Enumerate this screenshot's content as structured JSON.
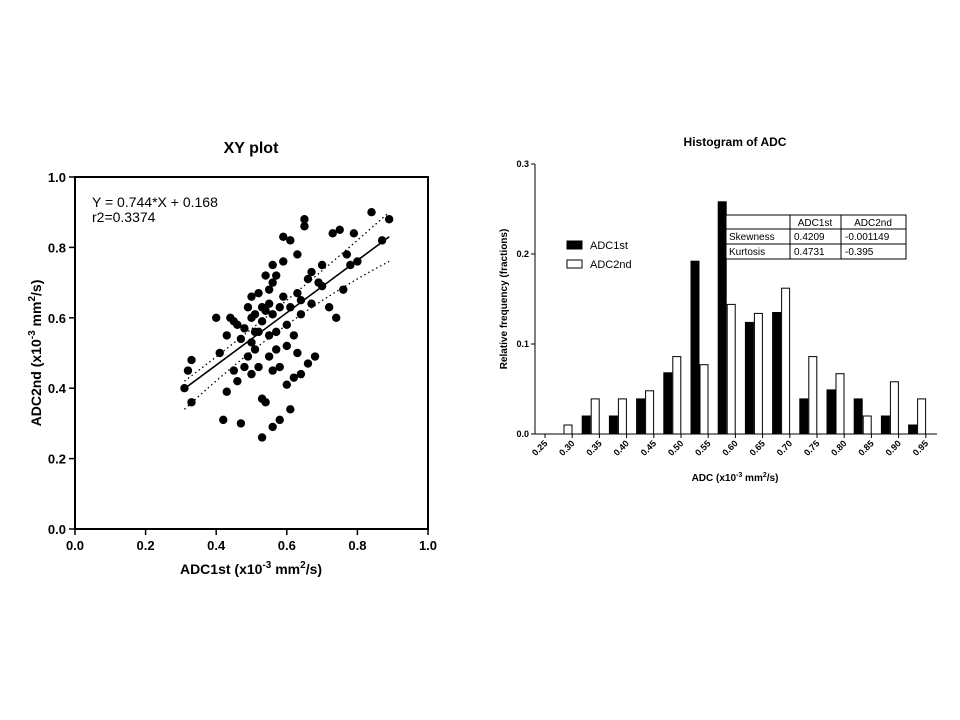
{
  "chart_data": [
    {
      "type": "scatter",
      "title": "XY plot",
      "xlabel": {
        "prefix": "ADC1st (x10",
        "sup1": "-3",
        "mid": " mm",
        "sup2": "2",
        "suffix": "/s)"
      },
      "ylabel": {
        "prefix": "ADC2nd (x10",
        "sup1": "-3",
        "mid": " mm",
        "sup2": "2",
        "suffix": "/s)"
      },
      "xlim": [
        0,
        1.0
      ],
      "ylim": [
        0,
        1.0
      ],
      "xticks": [
        "0.0",
        "0.2",
        "0.4",
        "0.6",
        "0.8",
        "1.0"
      ],
      "yticks": [
        "0.0",
        "0.2",
        "0.4",
        "0.6",
        "0.8",
        "1.0"
      ],
      "annotations": [
        "Y = 0.744*X + 0.168",
        "r2=0.3374"
      ],
      "regression": {
        "slope": 0.744,
        "intercept": 0.168,
        "x_range": [
          0.31,
          0.89
        ]
      },
      "confidence_band": {
        "lower": [
          [
            0.31,
            0.34
          ],
          [
            0.6,
            0.61
          ],
          [
            0.89,
            0.76
          ]
        ],
        "upper": [
          [
            0.31,
            0.42
          ],
          [
            0.6,
            0.64
          ],
          [
            0.89,
            0.9
          ]
        ]
      },
      "points": [
        [
          0.31,
          0.4
        ],
        [
          0.32,
          0.45
        ],
        [
          0.33,
          0.48
        ],
        [
          0.33,
          0.36
        ],
        [
          0.4,
          0.6
        ],
        [
          0.41,
          0.5
        ],
        [
          0.42,
          0.31
        ],
        [
          0.43,
          0.39
        ],
        [
          0.43,
          0.55
        ],
        [
          0.44,
          0.6
        ],
        [
          0.45,
          0.59
        ],
        [
          0.45,
          0.45
        ],
        [
          0.46,
          0.58
        ],
        [
          0.46,
          0.42
        ],
        [
          0.47,
          0.3
        ],
        [
          0.47,
          0.54
        ],
        [
          0.48,
          0.57
        ],
        [
          0.48,
          0.46
        ],
        [
          0.49,
          0.63
        ],
        [
          0.49,
          0.49
        ],
        [
          0.5,
          0.6
        ],
        [
          0.5,
          0.66
        ],
        [
          0.5,
          0.53
        ],
        [
          0.5,
          0.44
        ],
        [
          0.51,
          0.61
        ],
        [
          0.51,
          0.56
        ],
        [
          0.51,
          0.51
        ],
        [
          0.52,
          0.67
        ],
        [
          0.52,
          0.56
        ],
        [
          0.52,
          0.46
        ],
        [
          0.53,
          0.63
        ],
        [
          0.53,
          0.59
        ],
        [
          0.53,
          0.26
        ],
        [
          0.53,
          0.37
        ],
        [
          0.54,
          0.72
        ],
        [
          0.54,
          0.62
        ],
        [
          0.54,
          0.36
        ],
        [
          0.55,
          0.68
        ],
        [
          0.55,
          0.64
        ],
        [
          0.55,
          0.55
        ],
        [
          0.55,
          0.49
        ],
        [
          0.56,
          0.75
        ],
        [
          0.56,
          0.7
        ],
        [
          0.56,
          0.61
        ],
        [
          0.56,
          0.45
        ],
        [
          0.56,
          0.29
        ],
        [
          0.57,
          0.72
        ],
        [
          0.57,
          0.56
        ],
        [
          0.57,
          0.51
        ],
        [
          0.58,
          0.63
        ],
        [
          0.58,
          0.46
        ],
        [
          0.58,
          0.31
        ],
        [
          0.59,
          0.83
        ],
        [
          0.59,
          0.76
        ],
        [
          0.59,
          0.66
        ],
        [
          0.6,
          0.58
        ],
        [
          0.6,
          0.52
        ],
        [
          0.6,
          0.41
        ],
        [
          0.61,
          0.82
        ],
        [
          0.61,
          0.63
        ],
        [
          0.61,
          0.34
        ],
        [
          0.62,
          0.55
        ],
        [
          0.62,
          0.43
        ],
        [
          0.63,
          0.78
        ],
        [
          0.63,
          0.67
        ],
        [
          0.63,
          0.5
        ],
        [
          0.64,
          0.65
        ],
        [
          0.64,
          0.61
        ],
        [
          0.64,
          0.44
        ],
        [
          0.65,
          0.88
        ],
        [
          0.65,
          0.86
        ],
        [
          0.66,
          0.71
        ],
        [
          0.66,
          0.47
        ],
        [
          0.67,
          0.73
        ],
        [
          0.67,
          0.64
        ],
        [
          0.68,
          0.49
        ],
        [
          0.69,
          0.7
        ],
        [
          0.7,
          0.75
        ],
        [
          0.7,
          0.69
        ],
        [
          0.72,
          0.63
        ],
        [
          0.73,
          0.84
        ],
        [
          0.74,
          0.6
        ],
        [
          0.75,
          0.85
        ],
        [
          0.76,
          0.68
        ],
        [
          0.77,
          0.78
        ],
        [
          0.78,
          0.75
        ],
        [
          0.79,
          0.84
        ],
        [
          0.8,
          0.76
        ],
        [
          0.84,
          0.9
        ],
        [
          0.87,
          0.82
        ],
        [
          0.89,
          0.88
        ]
      ]
    },
    {
      "type": "bar",
      "title": "Histogram of ADC",
      "xlabel": {
        "prefix": "ADC (x10",
        "sup1": "-3",
        "mid": " mm",
        "sup2": "2",
        "suffix": "/s)"
      },
      "ylabel": "Relative frequency (fractions)",
      "ylim": [
        0,
        0.3
      ],
      "yticks": [
        "0.0",
        "0.1",
        "0.2",
        "0.3"
      ],
      "categories": [
        "0.25",
        "0.30",
        "0.35",
        "0.40",
        "0.45",
        "0.50",
        "0.55",
        "0.60",
        "0.65",
        "0.70",
        "0.75",
        "0.80",
        "0.85",
        "0.90",
        "0.95"
      ],
      "series": [
        {
          "name": "ADC1st",
          "color": "#000000",
          "values": [
            0,
            0.02,
            0.02,
            0.039,
            0.068,
            0.192,
            0.258,
            0.124,
            0.135,
            0.039,
            0.049,
            0.039,
            0.02,
            0.01,
            0
          ]
        },
        {
          "name": "ADC2nd",
          "color": "#ffffff",
          "values": [
            0.01,
            0.039,
            0.039,
            0.048,
            0.086,
            0.077,
            0.144,
            0.134,
            0.162,
            0.086,
            0.067,
            0.02,
            0.058,
            0.039,
            0
          ]
        }
      ],
      "legend_position": "left",
      "stats_table": {
        "headers": [
          "",
          "ADC1st",
          "ADC2nd"
        ],
        "rows": [
          [
            "Skewness",
            "0.4209",
            "-0.001149"
          ],
          [
            "Kurtosis",
            "0.4731",
            "-0.395"
          ]
        ]
      }
    }
  ]
}
